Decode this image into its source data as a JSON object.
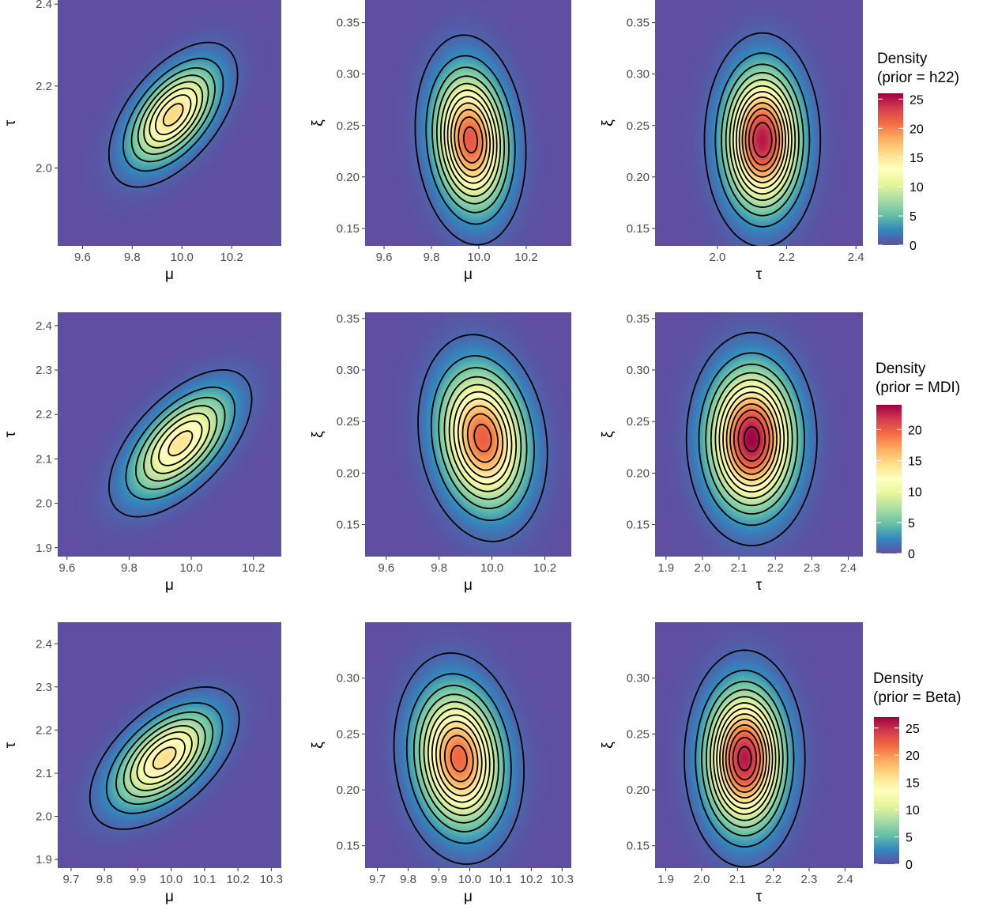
{
  "chart_data": [
    {
      "type": "heatmap",
      "row": 0,
      "col": 0,
      "xlabel": "μ",
      "ylabel": "τ",
      "xlim": [
        9.5,
        10.4
      ],
      "ylim": [
        1.81,
        2.41
      ],
      "xticks": [
        {
          "v": 9.6,
          "label": "9.6"
        },
        {
          "v": 9.8,
          "label": "9.8"
        },
        {
          "v": 10.0,
          "label": "10.0"
        },
        {
          "v": 10.2,
          "label": "10.2"
        }
      ],
      "yticks": [
        {
          "v": 2.0,
          "label": "2.0"
        },
        {
          "v": 2.2,
          "label": "2.2"
        },
        {
          "v": 2.4,
          "label": "2.4"
        }
      ],
      "density": {
        "cx": 9.965,
        "cy": 2.13,
        "sx": 0.11,
        "sy": 0.075,
        "rho": 0.55,
        "peak": 16
      },
      "contour_levels": [
        1,
        3,
        5,
        7,
        9,
        11,
        13,
        15
      ]
    },
    {
      "type": "heatmap",
      "row": 0,
      "col": 1,
      "xlabel": "μ",
      "ylabel": "ξ",
      "xlim": [
        9.52,
        10.39
      ],
      "ylim": [
        0.133,
        0.372
      ],
      "xticks": [
        {
          "v": 9.6,
          "label": "9.6"
        },
        {
          "v": 9.8,
          "label": "9.8"
        },
        {
          "v": 10.0,
          "label": "10.0"
        },
        {
          "v": 10.2,
          "label": "10.2"
        }
      ],
      "yticks": [
        {
          "v": 0.15,
          "label": "0.15"
        },
        {
          "v": 0.2,
          "label": "0.20"
        },
        {
          "v": 0.25,
          "label": "0.25"
        },
        {
          "v": 0.3,
          "label": "0.30"
        },
        {
          "v": 0.35,
          "label": "0.35"
        }
      ],
      "density": {
        "cx": 9.965,
        "cy": 0.236,
        "sx": 0.094,
        "sy": 0.041,
        "rho": -0.12,
        "peak": 22
      },
      "contour_levels": [
        1,
        3,
        5,
        7,
        9,
        11,
        13,
        15,
        17,
        19,
        21
      ]
    },
    {
      "type": "heatmap",
      "row": 0,
      "col": 2,
      "xlabel": "τ",
      "ylabel": "ξ",
      "xlim": [
        1.82,
        2.42
      ],
      "ylim": [
        0.133,
        0.372
      ],
      "xticks": [
        {
          "v": 2.0,
          "label": "2.0"
        },
        {
          "v": 2.2,
          "label": "2.2"
        },
        {
          "v": 2.4,
          "label": "2.4"
        }
      ],
      "yticks": [
        {
          "v": 0.15,
          "label": "0.15"
        },
        {
          "v": 0.2,
          "label": "0.20"
        },
        {
          "v": 0.25,
          "label": "0.25"
        },
        {
          "v": 0.3,
          "label": "0.30"
        },
        {
          "v": 0.35,
          "label": "0.35"
        }
      ],
      "density": {
        "cx": 2.13,
        "cy": 0.236,
        "sx": 0.066,
        "sy": 0.041,
        "rho": 0.0,
        "peak": 25
      },
      "contour_levels": [
        1,
        3,
        5,
        7,
        9,
        11,
        13,
        15,
        17,
        19,
        21,
        23
      ]
    },
    {
      "type": "heatmap",
      "row": 1,
      "col": 0,
      "xlabel": "μ",
      "ylabel": "τ",
      "xlim": [
        9.57,
        10.29
      ],
      "ylim": [
        1.88,
        2.43
      ],
      "xticks": [
        {
          "v": 9.6,
          "label": "9.6"
        },
        {
          "v": 9.8,
          "label": "9.8"
        },
        {
          "v": 10.0,
          "label": "10.0"
        },
        {
          "v": 10.2,
          "label": "10.2"
        }
      ],
      "yticks": [
        {
          "v": 1.9,
          "label": "1.9"
        },
        {
          "v": 2.0,
          "label": "2.0"
        },
        {
          "v": 2.1,
          "label": "2.1"
        },
        {
          "v": 2.2,
          "label": "2.2"
        },
        {
          "v": 2.3,
          "label": "2.3"
        },
        {
          "v": 2.4,
          "label": "2.4"
        }
      ],
      "density": {
        "cx": 9.965,
        "cy": 2.135,
        "sx": 0.1,
        "sy": 0.072,
        "rho": 0.6,
        "peak": 14
      },
      "contour_levels": [
        1,
        3,
        5,
        7,
        9,
        11,
        13
      ]
    },
    {
      "type": "heatmap",
      "row": 1,
      "col": 1,
      "xlabel": "μ",
      "ylabel": "ξ",
      "xlim": [
        9.52,
        10.3
      ],
      "ylim": [
        0.119,
        0.356
      ],
      "xticks": [
        {
          "v": 9.6,
          "label": "9.6"
        },
        {
          "v": 9.8,
          "label": "9.8"
        },
        {
          "v": 10.0,
          "label": "10.0"
        },
        {
          "v": 10.2,
          "label": "10.2"
        }
      ],
      "yticks": [
        {
          "v": 0.15,
          "label": "0.15"
        },
        {
          "v": 0.2,
          "label": "0.20"
        },
        {
          "v": 0.25,
          "label": "0.25"
        },
        {
          "v": 0.3,
          "label": "0.30"
        },
        {
          "v": 0.35,
          "label": "0.35"
        }
      ],
      "density": {
        "cx": 9.965,
        "cy": 0.234,
        "sx": 0.1,
        "sy": 0.041,
        "rho": -0.15,
        "peak": 20
      },
      "contour_levels": [
        1,
        3,
        5,
        7,
        9,
        11,
        13,
        15,
        17,
        19
      ]
    },
    {
      "type": "heatmap",
      "row": 1,
      "col": 2,
      "xlabel": "τ",
      "ylabel": "ξ",
      "xlim": [
        1.87,
        2.44
      ],
      "ylim": [
        0.119,
        0.356
      ],
      "xticks": [
        {
          "v": 1.9,
          "label": "1.9"
        },
        {
          "v": 2.0,
          "label": "2.0"
        },
        {
          "v": 2.1,
          "label": "2.1"
        },
        {
          "v": 2.2,
          "label": "2.2"
        },
        {
          "v": 2.3,
          "label": "2.3"
        },
        {
          "v": 2.4,
          "label": "2.4"
        }
      ],
      "yticks": [
        {
          "v": 0.15,
          "label": "0.15"
        },
        {
          "v": 0.2,
          "label": "0.20"
        },
        {
          "v": 0.25,
          "label": "0.25"
        },
        {
          "v": 0.3,
          "label": "0.30"
        },
        {
          "v": 0.35,
          "label": "0.35"
        }
      ],
      "density": {
        "cx": 2.135,
        "cy": 0.233,
        "sx": 0.071,
        "sy": 0.041,
        "rho": 0.0,
        "peak": 24
      },
      "contour_levels": [
        1,
        3,
        5,
        7,
        9,
        11,
        13,
        15,
        17,
        19,
        21,
        23
      ]
    },
    {
      "type": "heatmap",
      "row": 2,
      "col": 0,
      "xlabel": "μ",
      "ylabel": "τ",
      "xlim": [
        9.66,
        10.33
      ],
      "ylim": [
        1.88,
        2.45
      ],
      "xticks": [
        {
          "v": 9.7,
          "label": "9.7"
        },
        {
          "v": 9.8,
          "label": "9.8"
        },
        {
          "v": 9.9,
          "label": "9.9"
        },
        {
          "v": 10.0,
          "label": "10.0"
        },
        {
          "v": 10.1,
          "label": "10.1"
        },
        {
          "v": 10.2,
          "label": "10.2"
        },
        {
          "v": 10.3,
          "label": "10.3"
        }
      ],
      "yticks": [
        {
          "v": 1.9,
          "label": "1.9"
        },
        {
          "v": 2.0,
          "label": "2.0"
        },
        {
          "v": 2.1,
          "label": "2.1"
        },
        {
          "v": 2.2,
          "label": "2.2"
        },
        {
          "v": 2.3,
          "label": "2.3"
        },
        {
          "v": 2.4,
          "label": "2.4"
        }
      ],
      "density": {
        "cx": 9.98,
        "cy": 2.135,
        "sx": 0.095,
        "sy": 0.07,
        "rho": 0.55,
        "peak": 16
      },
      "contour_levels": [
        1,
        3,
        5,
        7,
        9,
        11,
        13,
        15
      ]
    },
    {
      "type": "heatmap",
      "row": 2,
      "col": 1,
      "xlabel": "μ",
      "ylabel": "ξ",
      "xlim": [
        9.66,
        10.33
      ],
      "ylim": [
        0.13,
        0.35
      ],
      "xticks": [
        {
          "v": 9.7,
          "label": "9.7"
        },
        {
          "v": 9.8,
          "label": "9.8"
        },
        {
          "v": 9.9,
          "label": "9.9"
        },
        {
          "v": 10.0,
          "label": "10.0"
        },
        {
          "v": 10.1,
          "label": "10.1"
        },
        {
          "v": 10.2,
          "label": "10.2"
        },
        {
          "v": 10.3,
          "label": "10.3"
        }
      ],
      "yticks": [
        {
          "v": 0.15,
          "label": "0.15"
        },
        {
          "v": 0.2,
          "label": "0.20"
        },
        {
          "v": 0.25,
          "label": "0.25"
        },
        {
          "v": 0.3,
          "label": "0.30"
        }
      ],
      "density": {
        "cx": 9.965,
        "cy": 0.228,
        "sx": 0.085,
        "sy": 0.038,
        "rho": -0.12,
        "peak": 22
      },
      "contour_levels": [
        1,
        3,
        5,
        7,
        9,
        11,
        13,
        15,
        17,
        19,
        21
      ]
    },
    {
      "type": "heatmap",
      "row": 2,
      "col": 2,
      "xlabel": "τ",
      "ylabel": "ξ",
      "xlim": [
        1.87,
        2.45
      ],
      "ylim": [
        0.13,
        0.35
      ],
      "xticks": [
        {
          "v": 1.9,
          "label": "1.9"
        },
        {
          "v": 2.0,
          "label": "2.0"
        },
        {
          "v": 2.1,
          "label": "2.1"
        },
        {
          "v": 2.2,
          "label": "2.2"
        },
        {
          "v": 2.3,
          "label": "2.3"
        },
        {
          "v": 2.4,
          "label": "2.4"
        }
      ],
      "yticks": [
        {
          "v": 0.15,
          "label": "0.15"
        },
        {
          "v": 0.2,
          "label": "0.20"
        },
        {
          "v": 0.25,
          "label": "0.25"
        },
        {
          "v": 0.3,
          "label": "0.30"
        }
      ],
      "density": {
        "cx": 2.12,
        "cy": 0.228,
        "sx": 0.066,
        "sy": 0.038,
        "rho": 0.0,
        "peak": 26
      },
      "contour_levels": [
        1,
        3,
        5,
        7,
        9,
        11,
        13,
        15,
        17,
        19,
        21,
        23,
        25
      ]
    }
  ],
  "legends": [
    {
      "title_line1": "Density",
      "title_line2": "(prior = h22)",
      "max": 26,
      "ticks": [
        {
          "v": 0,
          "label": "0"
        },
        {
          "v": 5,
          "label": "5"
        },
        {
          "v": 10,
          "label": "10"
        },
        {
          "v": 15,
          "label": "15"
        },
        {
          "v": 20,
          "label": "20"
        },
        {
          "v": 25,
          "label": "25"
        }
      ]
    },
    {
      "title_line1": "Density",
      "title_line2": "(prior = MDI)",
      "max": 24,
      "ticks": [
        {
          "v": 0,
          "label": "0"
        },
        {
          "v": 5,
          "label": "5"
        },
        {
          "v": 10,
          "label": "10"
        },
        {
          "v": 15,
          "label": "15"
        },
        {
          "v": 20,
          "label": "20"
        }
      ]
    },
    {
      "title_line1": "Density",
      "title_line2": "(prior = Beta)",
      "max": 27,
      "ticks": [
        {
          "v": 0,
          "label": "0"
        },
        {
          "v": 5,
          "label": "5"
        },
        {
          "v": 10,
          "label": "10"
        },
        {
          "v": 15,
          "label": "15"
        },
        {
          "v": 20,
          "label": "20"
        },
        {
          "v": 25,
          "label": "25"
        }
      ]
    }
  ],
  "colors": {
    "palette": [
      "#5e4fa2",
      "#3288bd",
      "#66c2a5",
      "#abdda4",
      "#e6f598",
      "#ffffbf",
      "#fee08b",
      "#fdae61",
      "#f46d43",
      "#d53e4f",
      "#9e0142"
    ],
    "contour": "#000000"
  }
}
